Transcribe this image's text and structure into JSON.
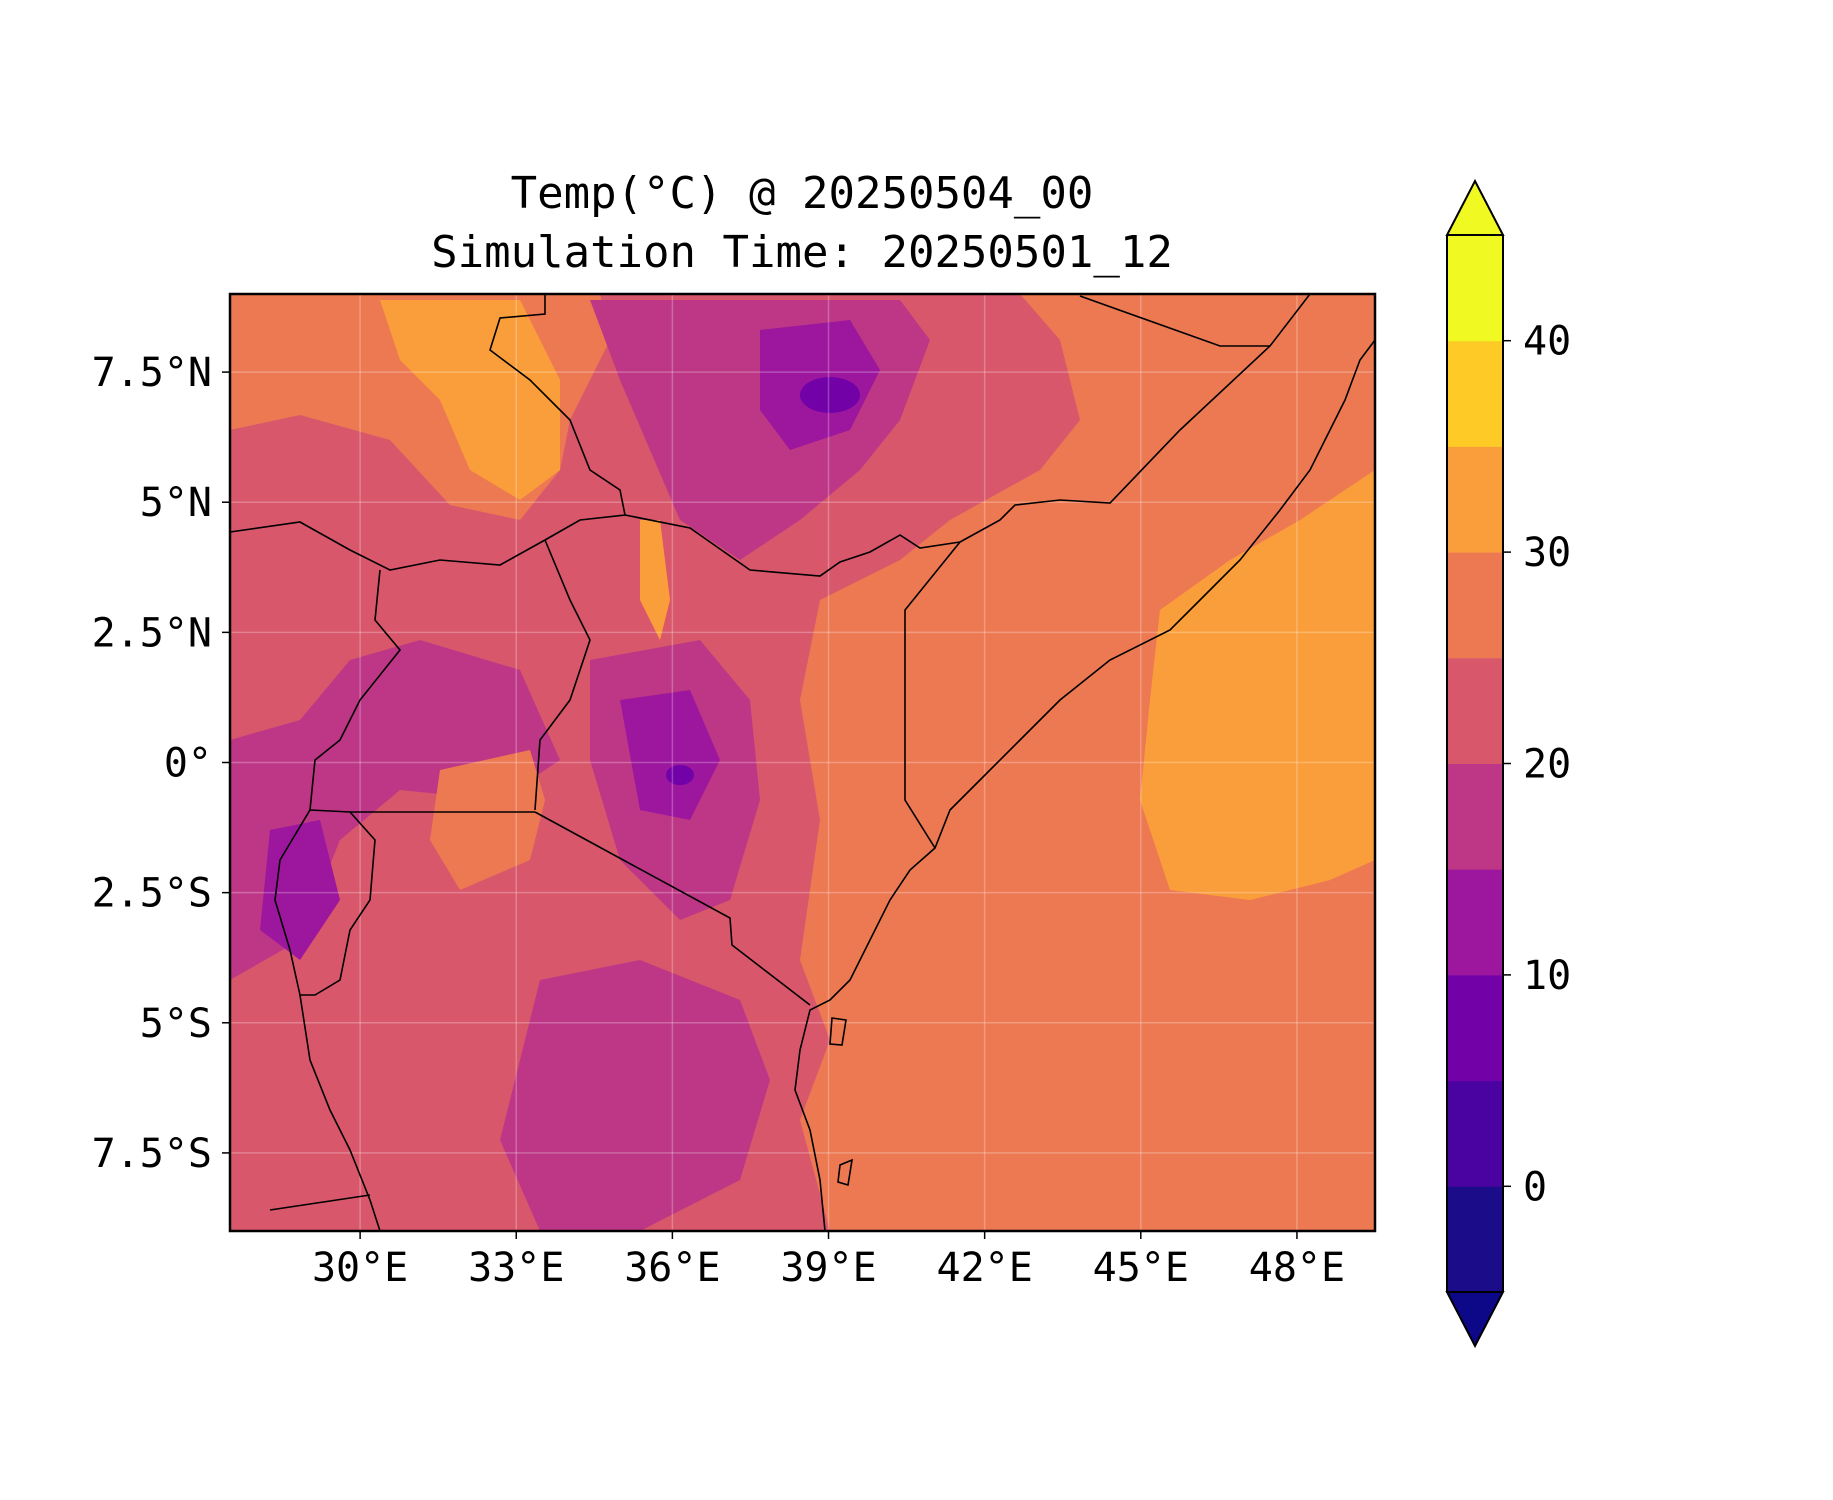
{
  "title_line1": "Temp(°C) @ 20250504_00",
  "title_line2": "Simulation Time: 20250501_12",
  "map": {
    "lon_range": [
      27.5,
      49.5
    ],
    "lat_range": [
      -9.0,
      9.0
    ],
    "x_ticks": [
      {
        "value": 30,
        "label": "30°E"
      },
      {
        "value": 33,
        "label": "33°E"
      },
      {
        "value": 36,
        "label": "36°E"
      },
      {
        "value": 39,
        "label": "39°E"
      },
      {
        "value": 42,
        "label": "42°E"
      },
      {
        "value": 45,
        "label": "45°E"
      },
      {
        "value": 48,
        "label": "48°E"
      }
    ],
    "y_ticks": [
      {
        "value": 7.5,
        "label": "7.5°N"
      },
      {
        "value": 5,
        "label": "5°N"
      },
      {
        "value": 2.5,
        "label": "2.5°N"
      },
      {
        "value": 0,
        "label": "0°"
      },
      {
        "value": -2.5,
        "label": "2.5°S"
      },
      {
        "value": -5,
        "label": "5°S"
      },
      {
        "value": -7.5,
        "label": "7.5°S"
      }
    ],
    "gridlines": true,
    "colormap": "plasma",
    "background_level_land": 20,
    "background_level_ocean": 25
  },
  "colorbar": {
    "levels": [
      -5,
      0,
      5,
      10,
      15,
      20,
      25,
      30,
      35,
      40,
      45
    ],
    "colors": [
      "#1b0c8a",
      "#4a02a0",
      "#7201a8",
      "#9c179e",
      "#bd3786",
      "#d8576b",
      "#ed7953",
      "#fa9e3b",
      "#fdca26",
      "#f0f921"
    ],
    "under_color": "#0d0887",
    "over_color": "#f0f921",
    "extend": "both",
    "ticks": [
      {
        "value": 0,
        "label": "0"
      },
      {
        "value": 10,
        "label": "10"
      },
      {
        "value": 20,
        "label": "20"
      },
      {
        "value": 30,
        "label": "30"
      },
      {
        "value": 40,
        "label": "40"
      }
    ]
  }
}
